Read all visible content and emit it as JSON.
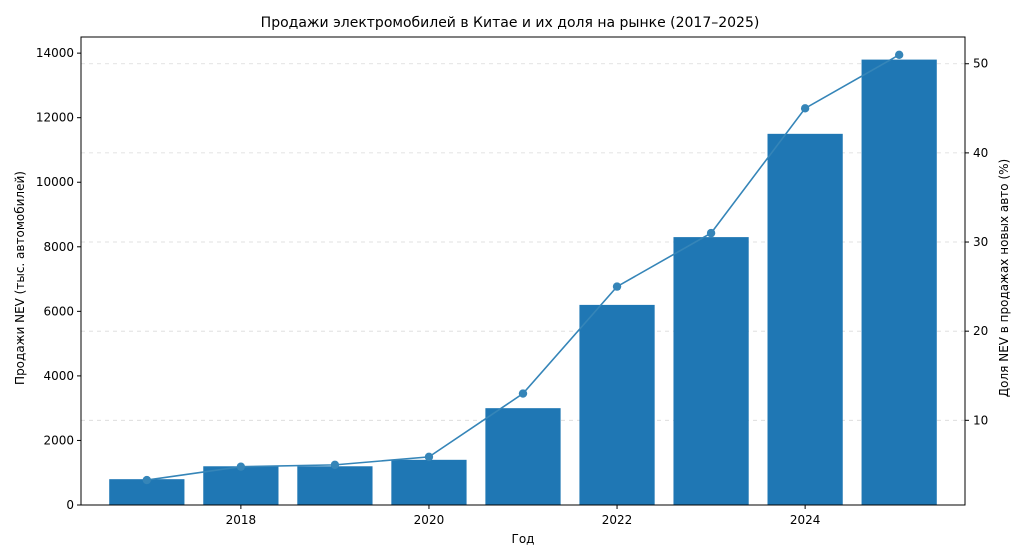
{
  "chart_data": {
    "type": "bar",
    "title": "Продажи электромобилей в Китае и их доля на рынке (2017–2025)",
    "xlabel": "Год",
    "ylabel": "Продажи NEV (тыс. автомобилей)",
    "y2label": "Доля NEV в продажах новых авто (%)",
    "x": [
      2017,
      2018,
      2019,
      2020,
      2021,
      2022,
      2023,
      2024,
      2025
    ],
    "xticks": [
      "2018",
      "2020",
      "2022",
      "2024"
    ],
    "yticks": [
      "0",
      "2000",
      "4000",
      "6000",
      "8000",
      "10000",
      "12000",
      "14000"
    ],
    "y2ticks": [
      "10",
      "20",
      "30",
      "40",
      "50"
    ],
    "xlim": [
      2016.3,
      2025.7
    ],
    "ylim": [
      0,
      14500
    ],
    "y2lim": [
      0.5,
      53
    ],
    "grid": "y2-dashed",
    "series": [
      {
        "kind": "bar",
        "axis": "left",
        "values": [
          800,
          1200,
          1200,
          1400,
          3000,
          6200,
          8300,
          11500,
          13800
        ],
        "color": "#1f77b4"
      },
      {
        "kind": "line",
        "axis": "right",
        "values": [
          3.3,
          4.8,
          5.0,
          5.9,
          13,
          25,
          31,
          45,
          51
        ],
        "color": "#3585b8"
      }
    ]
  }
}
